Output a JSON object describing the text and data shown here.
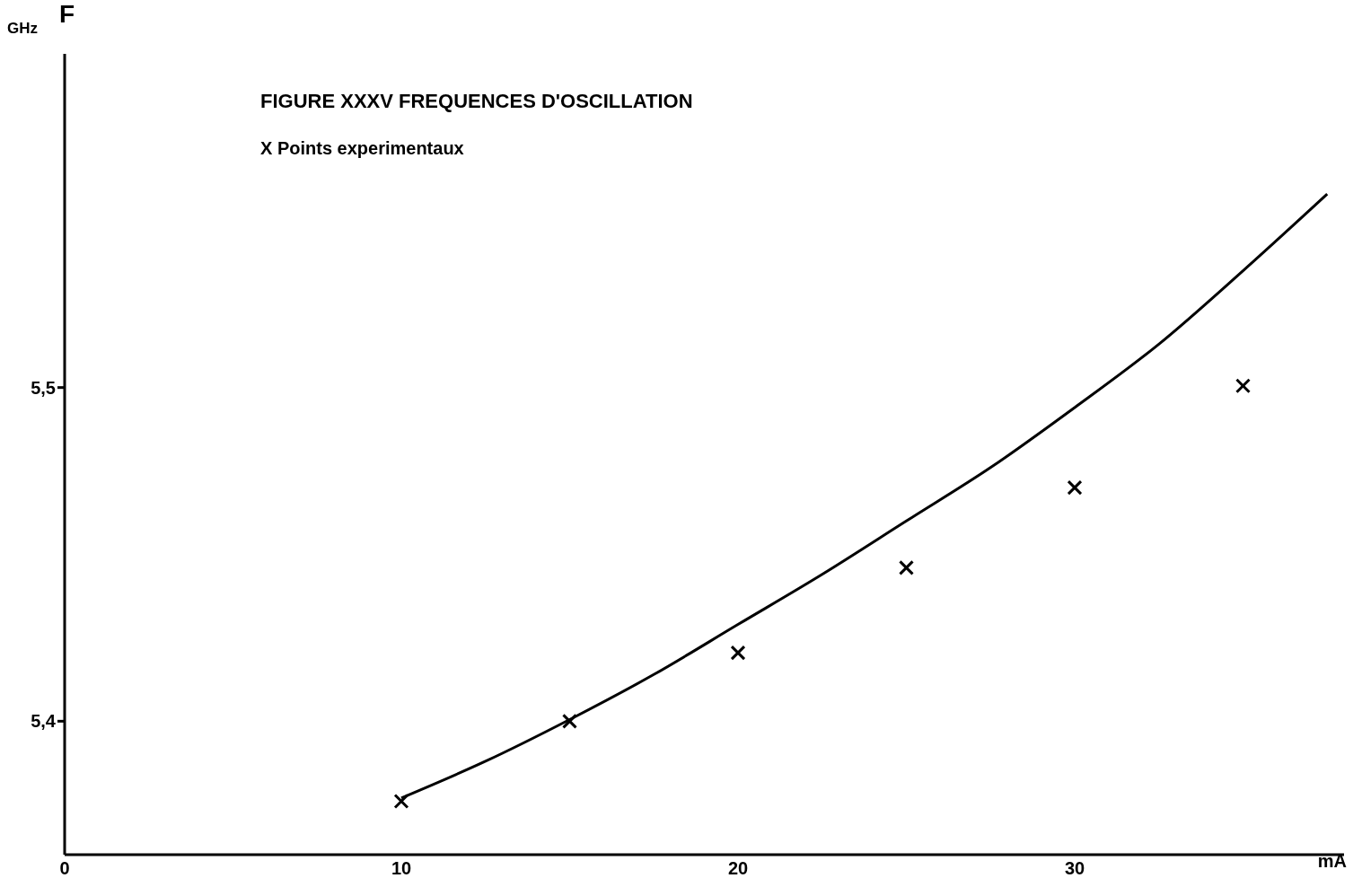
{
  "chart_data": {
    "type": "line",
    "title": "FIGURE XXXV  FREQUENCES D'OSCILLATION",
    "xlabel": "mA",
    "ylabel": "F",
    "annotations": [
      "GHz",
      "X Points experimentaux"
    ],
    "series": [
      {
        "color": "#000000",
        "marker": "none",
        "x": [
          10,
          12.5,
          15,
          17.5,
          20,
          22.5,
          25,
          27.5,
          30,
          32.5,
          35,
          37.5
        ],
        "values": [
          5.377,
          5.388,
          5.4005,
          5.414,
          5.429,
          5.444,
          5.46,
          5.476,
          5.494,
          5.513,
          5.535,
          5.558
        ]
      },
      {
        "type": "scatter",
        "color": "#000000",
        "marker": "cross",
        "x": [
          10,
          15,
          20,
          25,
          30,
          35
        ],
        "values": [
          5.376,
          5.4,
          5.4205,
          5.446,
          5.47,
          5.5005
        ]
      }
    ],
    "xlim": [
      0,
      38
    ],
    "xticks": [
      0,
      10,
      20,
      30
    ],
    "ylim": [
      5.36,
      5.6
    ],
    "yticks": [
      {
        "value": 5.4,
        "label": "5,4"
      },
      {
        "value": 5.5,
        "label": "5,5"
      }
    ]
  }
}
